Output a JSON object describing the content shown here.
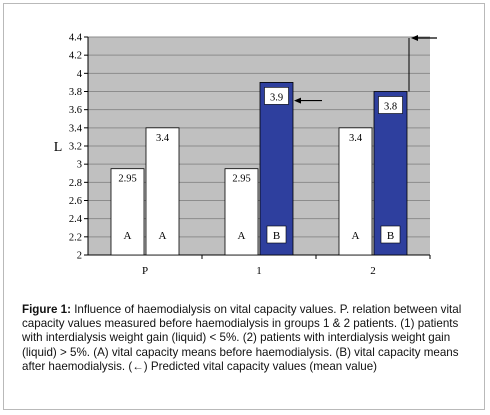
{
  "chart_data": {
    "type": "bar",
    "ylabel": "L",
    "ylim": [
      2,
      4.4
    ],
    "yticks": [
      "2",
      "2.2",
      "2.4",
      "2.6",
      "2.8",
      "3",
      "3.2",
      "3.4",
      "3.6",
      "3.8",
      "4",
      "4.2",
      "4.4"
    ],
    "ytick_values": [
      2,
      2.2,
      2.4,
      2.6,
      2.8,
      3,
      3.2,
      3.4,
      3.6,
      3.8,
      4,
      4.2,
      4.4
    ],
    "grid": true,
    "categories": [
      "P",
      "1",
      "2"
    ],
    "series": [
      {
        "name": "A",
        "values": [
          2.95,
          2.95,
          3.4
        ],
        "labels": [
          "2.95",
          "2.95",
          "3.4"
        ],
        "inner_labels": [
          "A",
          "A",
          "A"
        ],
        "color": "#ffffff"
      },
      {
        "name": "",
        "values": [
          3.4,
          3.9,
          3.8
        ],
        "labels": [
          "3.4",
          "3.9",
          "3.8"
        ],
        "inner_labels": [
          "A",
          "B",
          "B"
        ],
        "colors": [
          "#ffffff",
          "#2e3f9e",
          "#2e3f9e"
        ]
      }
    ],
    "predicted_arrows": [
      {
        "category": "1",
        "value": 3.9,
        "note": "←"
      },
      {
        "category": "2",
        "value": 4.4,
        "note": "←"
      }
    ]
  },
  "caption": {
    "label": "Figure 1:",
    "text": " Influence of haemodialysis on vital capacity values. P. relation between vital capacity values measured before haemodialysis in groups 1 & 2 patients. (1) patients with interdialysis weight gain (liquid) < 5%. (2) patients with interdialysis weight gain (liquid) > 5%. (A)   vital capacity means before haemodialysis. (B) vital capacity means after haemodialysis.  (←) Predicted vital capacity values (mean value)"
  },
  "colors": {
    "plot_bg": "#c0c0c0",
    "bar_b": "#2e3f9e",
    "bar_a": "#ffffff",
    "grid": "#8c8c8c"
  }
}
